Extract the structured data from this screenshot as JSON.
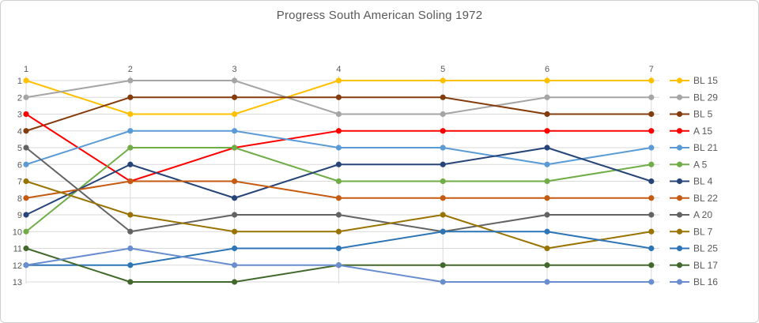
{
  "window": {
    "background_color": "#ffffff",
    "border_color": "#cfcfcf"
  },
  "chart_data": {
    "type": "line",
    "title": "Progress South American Soling 1972",
    "xlabel": "",
    "ylabel": "",
    "x_tick_labels": [
      "1",
      "2",
      "3",
      "4",
      "5",
      "6",
      "7"
    ],
    "y_tick_labels": [
      "1",
      "2",
      "3",
      "4",
      "5",
      "6",
      "7",
      "8",
      "9",
      "10",
      "11",
      "12",
      "13"
    ],
    "x_axis_position": "top",
    "y_axis": {
      "min": 1,
      "max": 13,
      "inverted": true
    },
    "grid": true,
    "grid_color": "#d9d9d9",
    "text_color": "#595959",
    "legend_position": "right",
    "marker": "circle",
    "categories": [
      1,
      2,
      3,
      4,
      5,
      6,
      7
    ],
    "series": [
      {
        "name": "BL 15",
        "color": "#FFC000",
        "values": [
          1,
          3,
          3,
          1,
          1,
          1,
          1
        ]
      },
      {
        "name": "BL 29",
        "color": "#A5A5A5",
        "values": [
          2,
          1,
          1,
          3,
          3,
          2,
          2
        ]
      },
      {
        "name": "BL 5",
        "color": "#843C0C",
        "values": [
          4,
          2,
          2,
          2,
          2,
          3,
          3
        ]
      },
      {
        "name": "A 15",
        "color": "#FF0000",
        "values": [
          3,
          7,
          5,
          4,
          4,
          4,
          4
        ]
      },
      {
        "name": "BL 21",
        "color": "#5B9BD5",
        "values": [
          6,
          4,
          4,
          5,
          5,
          6,
          5
        ]
      },
      {
        "name": "A 5",
        "color": "#70AD47",
        "values": [
          10,
          5,
          5,
          7,
          7,
          7,
          6
        ]
      },
      {
        "name": "BL 4",
        "color": "#264478",
        "values": [
          9,
          6,
          8,
          6,
          6,
          5,
          7
        ]
      },
      {
        "name": "BL 22",
        "color": "#C55A11",
        "values": [
          8,
          7,
          7,
          8,
          8,
          8,
          8
        ]
      },
      {
        "name": "A 20",
        "color": "#636363",
        "values": [
          5,
          10,
          9,
          9,
          10,
          9,
          9
        ]
      },
      {
        "name": "BL 7",
        "color": "#997300",
        "values": [
          7,
          9,
          10,
          10,
          9,
          11,
          10
        ]
      },
      {
        "name": "BL 25",
        "color": "#2E75B6",
        "values": [
          12,
          12,
          11,
          11,
          10,
          10,
          11
        ]
      },
      {
        "name": "BL 17",
        "color": "#43682B",
        "values": [
          11,
          13,
          13,
          12,
          12,
          12,
          12
        ]
      },
      {
        "name": "BL 16",
        "color": "#698ED0",
        "values": [
          12,
          11,
          12,
          12,
          13,
          13,
          13
        ]
      }
    ]
  }
}
